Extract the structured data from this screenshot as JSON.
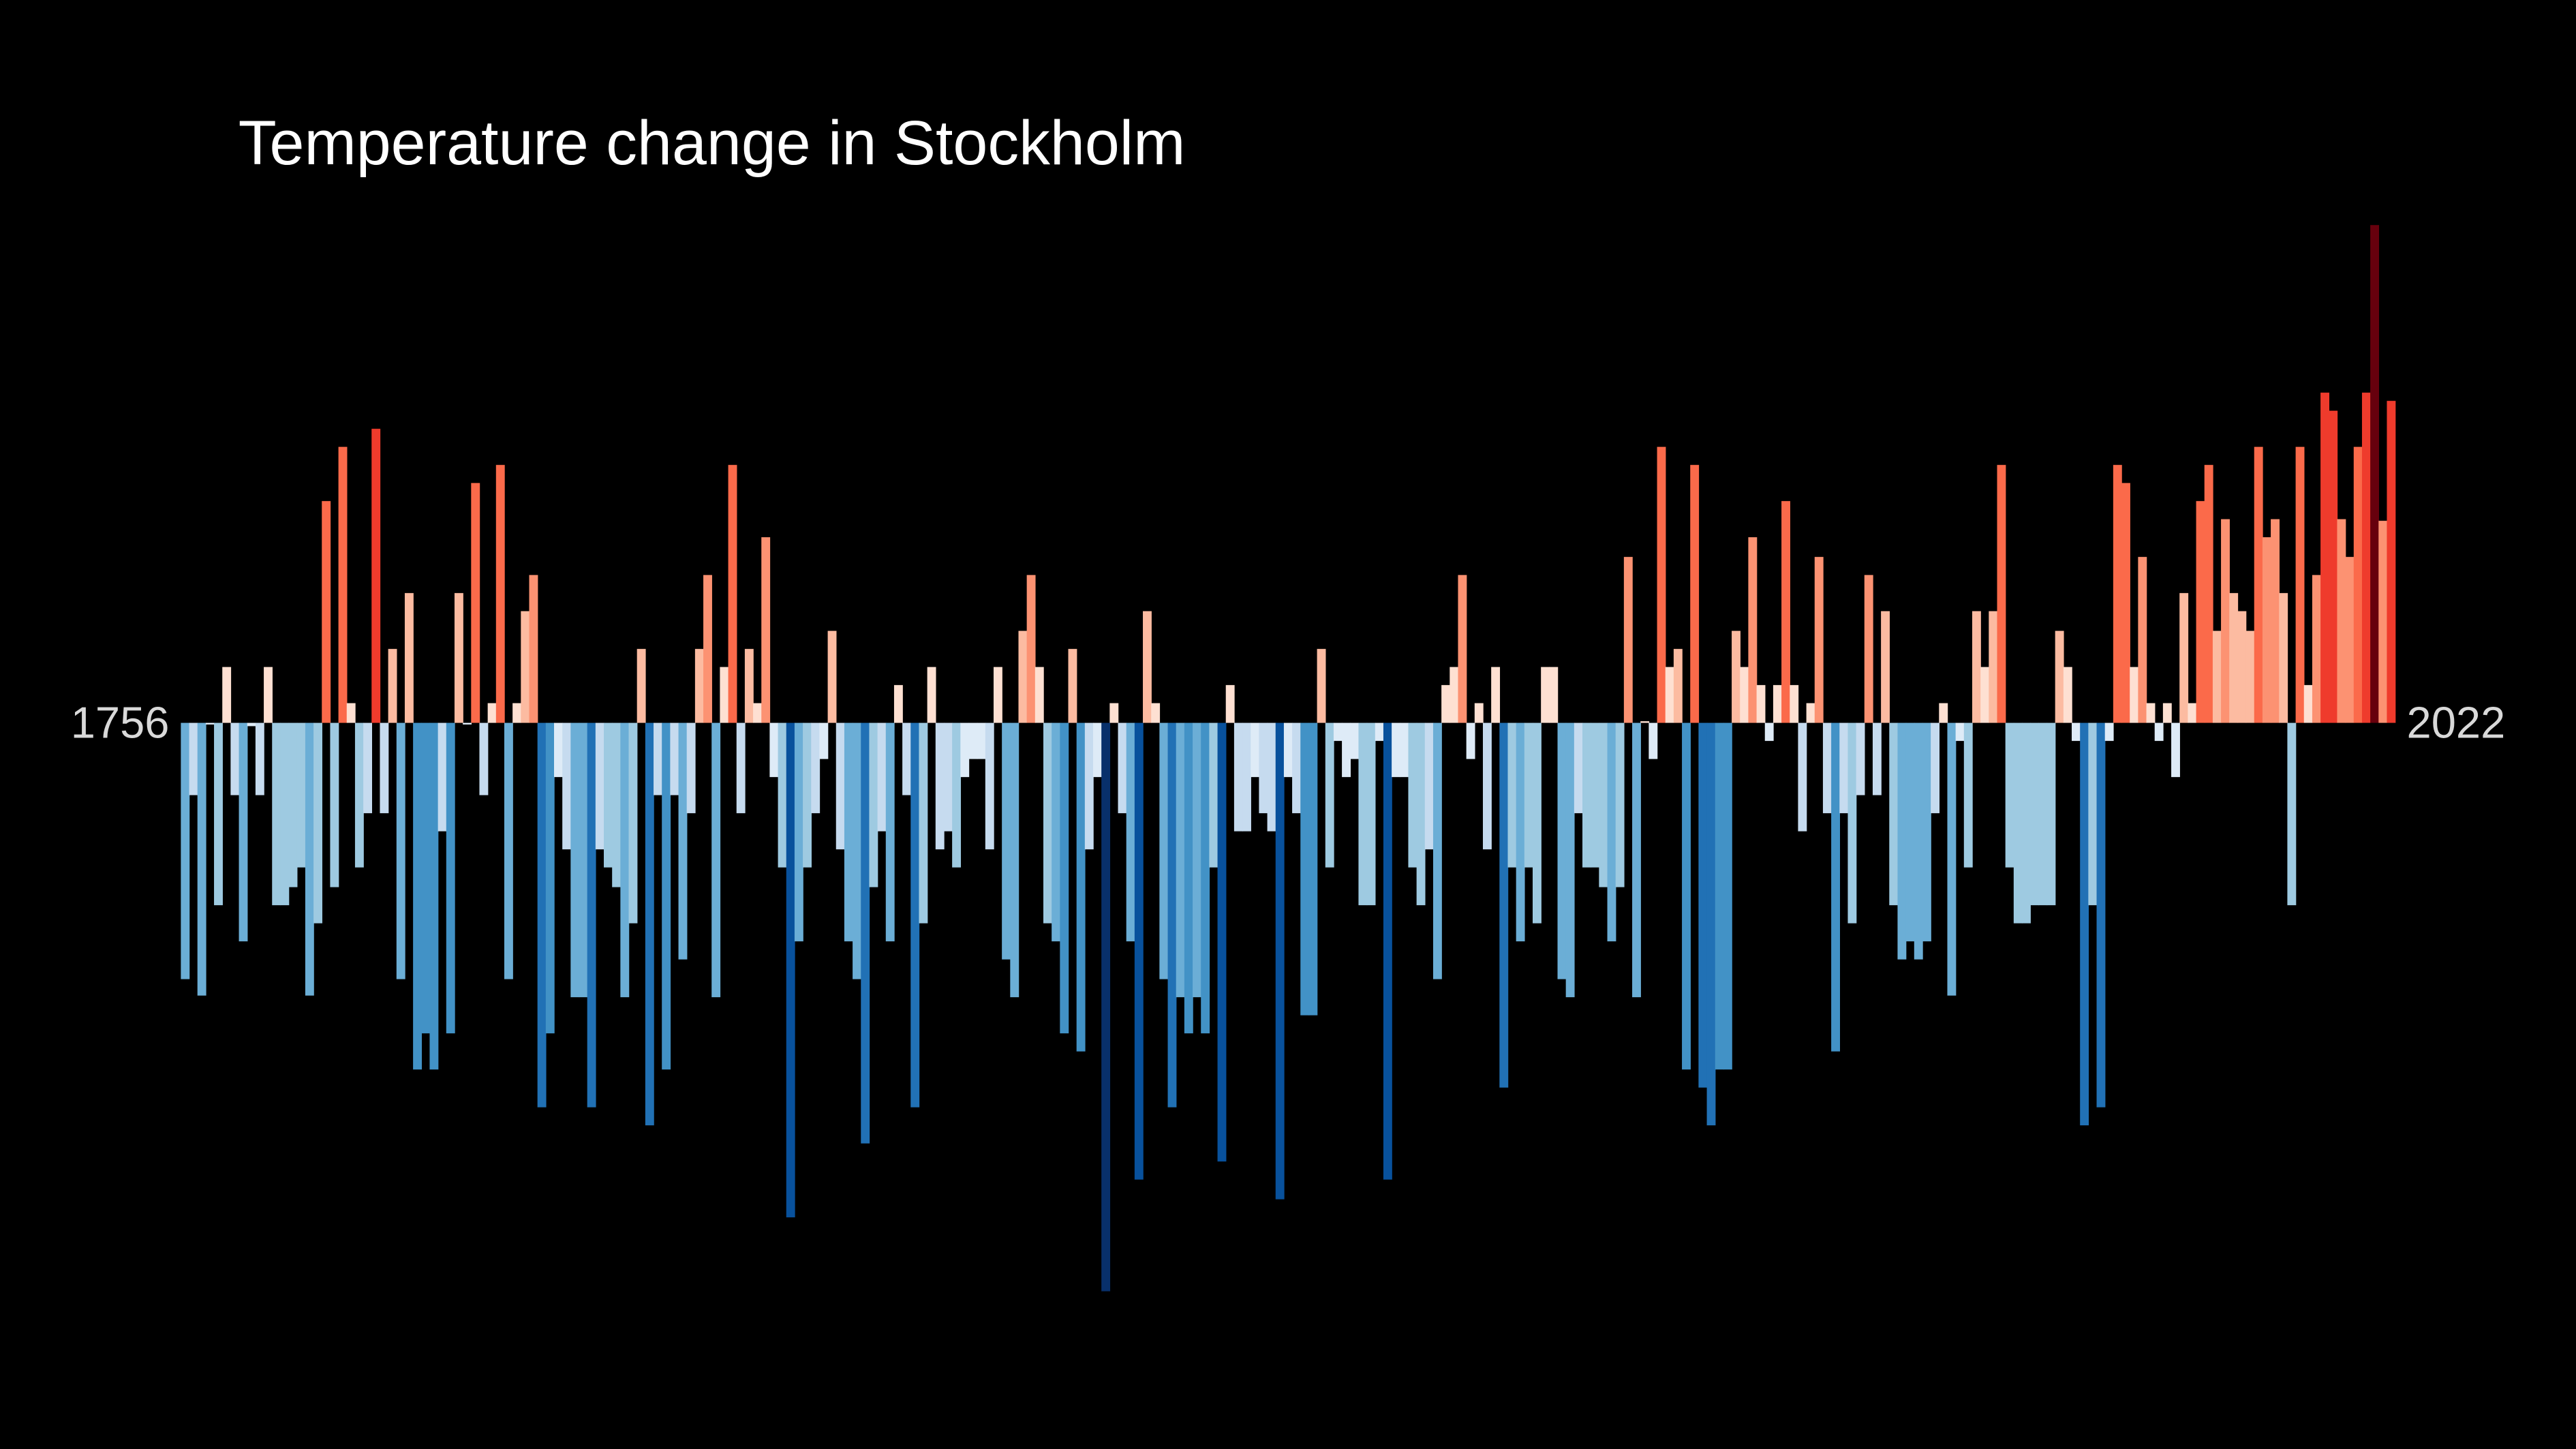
{
  "chart_data": {
    "type": "bar",
    "title": "Temperature change in Stockholm",
    "categories": [
      "1756",
      null,
      null,
      null,
      null,
      null,
      null,
      null,
      null,
      null,
      null,
      null,
      null,
      null,
      null,
      null,
      null,
      null,
      null,
      null,
      null,
      null,
      null,
      null,
      null,
      null,
      null,
      null,
      null,
      null,
      null,
      null,
      null,
      null,
      null,
      null,
      null,
      null,
      null,
      null,
      null,
      null,
      null,
      null,
      null,
      null,
      null,
      null,
      null,
      null,
      null,
      null,
      null,
      null,
      null,
      null,
      null,
      null,
      null,
      null,
      null,
      null,
      null,
      null,
      null,
      null,
      null,
      null,
      null,
      null,
      null,
      null,
      null,
      null,
      null,
      null,
      null,
      null,
      null,
      null,
      null,
      null,
      null,
      null,
      null,
      null,
      null,
      null,
      null,
      null,
      null,
      null,
      null,
      null,
      null,
      null,
      null,
      null,
      null,
      null,
      null,
      null,
      null,
      null,
      null,
      null,
      null,
      null,
      null,
      null,
      null,
      null,
      null,
      null,
      null,
      null,
      null,
      null,
      null,
      null,
      null,
      null,
      null,
      null,
      null,
      null,
      null,
      null,
      null,
      null,
      null,
      null,
      null,
      null,
      null,
      null,
      null,
      null,
      null,
      null,
      null,
      null,
      null,
      null,
      null,
      null,
      null,
      null,
      null,
      null,
      null,
      null,
      null,
      null,
      null,
      null,
      null,
      null,
      null,
      null,
      null,
      null,
      null,
      null,
      null,
      null,
      null,
      null,
      null,
      null,
      null,
      null,
      null,
      null,
      null,
      null,
      null,
      null,
      null,
      null,
      null,
      null,
      null,
      null,
      null,
      null,
      null,
      null,
      null,
      null,
      null,
      null,
      null,
      null,
      null,
      null,
      null,
      null,
      null,
      null,
      null,
      null,
      null,
      null,
      null,
      null,
      null,
      null,
      null,
      null,
      null,
      null,
      null,
      null,
      null,
      null,
      null,
      null,
      null,
      null,
      null,
      null,
      null,
      null,
      null,
      null,
      null,
      null,
      null,
      null,
      null,
      null,
      null,
      null,
      null,
      null,
      null,
      null,
      null,
      null,
      null,
      null,
      null,
      null,
      null,
      null,
      null,
      null,
      null,
      null,
      null,
      null,
      null,
      null,
      null,
      null,
      null,
      null,
      null,
      null,
      null,
      null,
      null,
      null,
      null,
      null,
      "2022"
    ],
    "values": [
      -1.56,
      -0.44,
      -1.66,
      -0.01,
      -1.11,
      0.34,
      -0.44,
      -1.33,
      -0.02,
      -0.44,
      0.34,
      -1.11,
      -1.11,
      -1.0,
      -0.88,
      -1.66,
      -1.22,
      1.35,
      -1.0,
      1.68,
      0.12,
      -0.88,
      -0.55,
      1.79,
      -0.55,
      0.45,
      -1.56,
      0.79,
      -2.11,
      -1.89,
      -2.11,
      -0.66,
      -1.89,
      0.79,
      -0.01,
      1.46,
      -0.44,
      0.12,
      1.57,
      -1.56,
      0.12,
      0.68,
      0.9,
      -2.34,
      -1.89,
      -0.33,
      -0.77,
      -1.67,
      -1.67,
      -2.34,
      -0.77,
      -0.88,
      -1.0,
      -1.67,
      -1.22,
      0.45,
      -2.45,
      -0.44,
      -2.11,
      -0.44,
      -1.44,
      -0.55,
      0.45,
      0.9,
      -1.67,
      0.34,
      1.57,
      -0.55,
      0.45,
      0.12,
      1.13,
      -0.33,
      -0.88,
      -3.01,
      -1.33,
      -0.88,
      -0.55,
      -0.22,
      0.56,
      -0.77,
      -1.33,
      -1.56,
      -2.56,
      -1.0,
      -0.66,
      -1.33,
      0.23,
      -0.44,
      -2.34,
      -1.22,
      0.34,
      -0.77,
      -0.66,
      -0.88,
      -0.33,
      -0.22,
      -0.22,
      -0.77,
      0.34,
      -1.44,
      -1.67,
      0.56,
      0.9,
      0.34,
      -1.22,
      -1.33,
      -1.89,
      0.45,
      -2.0,
      -0.77,
      -0.33,
      -3.46,
      0.12,
      -0.55,
      -1.33,
      -2.78,
      0.68,
      0.12,
      -1.56,
      -2.34,
      -1.67,
      -1.89,
      -1.67,
      -1.89,
      -0.88,
      -2.67,
      0.23,
      -0.66,
      -0.66,
      -0.33,
      -0.55,
      -0.66,
      -2.9,
      -0.33,
      -0.55,
      -1.78,
      -1.78,
      0.45,
      -0.88,
      -0.11,
      -0.33,
      -0.22,
      -1.11,
      -1.11,
      -0.11,
      -2.78,
      -0.33,
      -0.33,
      -0.88,
      -1.11,
      -0.77,
      -1.56,
      0.23,
      0.34,
      0.9,
      -0.22,
      0.12,
      -0.77,
      0.34,
      -2.22,
      -0.88,
      -1.33,
      -0.88,
      -1.22,
      0.34,
      0.34,
      -1.56,
      -1.67,
      -0.55,
      -0.88,
      -0.88,
      -1.0,
      -1.33,
      -1.0,
      1.01,
      -1.67,
      0.01,
      -0.22,
      1.68,
      0.34,
      0.45,
      -2.11,
      1.57,
      -2.22,
      -2.45,
      -2.11,
      -2.11,
      0.56,
      0.34,
      1.13,
      0.23,
      -0.11,
      0.23,
      1.35,
      0.23,
      -0.66,
      0.12,
      1.01,
      -0.55,
      -2.0,
      -0.55,
      -1.22,
      -0.44,
      0.9,
      -0.44,
      0.68,
      -1.11,
      -1.44,
      -1.33,
      -1.44,
      -1.33,
      -0.55,
      0.12,
      -1.66,
      -0.11,
      -0.88,
      0.68,
      0.34,
      0.68,
      1.57,
      -0.88,
      -1.22,
      -1.22,
      -1.11,
      -1.11,
      -1.11,
      0.56,
      0.34,
      -0.11,
      -2.45,
      -1.11,
      -2.34,
      -0.11,
      1.57,
      1.46,
      0.34,
      1.01,
      0.12,
      -0.11,
      0.12,
      -0.33,
      0.79,
      0.12,
      1.35,
      1.57,
      0.56,
      1.24,
      0.79,
      0.68,
      0.56,
      1.68,
      1.13,
      1.24,
      0.79,
      -1.11,
      1.68,
      0.23,
      0.9,
      2.01,
      1.9,
      1.24,
      1.01,
      1.68,
      2.01,
      3.03,
      1.23,
      1.96
    ],
    "colormap": [
      "#08306b",
      "#08519c",
      "#2171b5",
      "#4292c6",
      "#6baed6",
      "#9ecae1",
      "#c6dbef",
      "#deebf7",
      "#fee0d2",
      "#fcbba1",
      "#fc9272",
      "#fb6a4a",
      "#ef3b2c",
      "#cb181d",
      "#a50f15",
      "#67000d"
    ],
    "background": "#000000"
  }
}
